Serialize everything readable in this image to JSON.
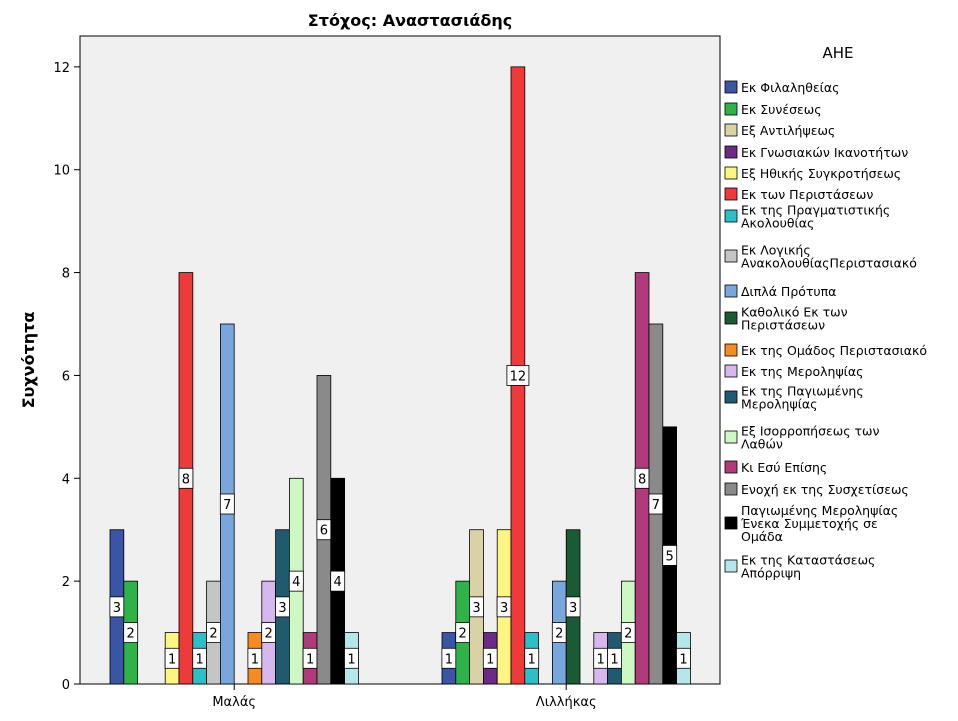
{
  "chart_data": {
    "type": "bar",
    "title": "Στόχος: Αναστασιάδης",
    "xlabel": "",
    "ylabel": "Συχνότητα",
    "ylim": [
      0,
      12.6
    ],
    "yticks": [
      0,
      2,
      4,
      6,
      8,
      10,
      12
    ],
    "categories": [
      "Μαλάς",
      "Λιλλήκας"
    ],
    "legend_title": "ΑΗΕ",
    "legend_position": "right",
    "grid": false,
    "series": [
      {
        "name": "Εκ Φιλαληθείας",
        "lines": [
          "Εκ Φιλαληθείας"
        ],
        "color": "#3a55a4",
        "values": [
          3,
          1
        ]
      },
      {
        "name": "Εκ Συνέσεως",
        "lines": [
          "Εκ Συνέσεως"
        ],
        "color": "#2eb24a",
        "values": [
          2,
          2
        ]
      },
      {
        "name": "Εξ Αντιλήψεως",
        "lines": [
          "Εξ Αντιλήψεως"
        ],
        "color": "#d8d2a6",
        "values": [
          0,
          3
        ]
      },
      {
        "name": "Εκ Γνωσιακών Ικανοτήτων",
        "lines": [
          "Εκ Γνωσιακών Ικανοτήτων"
        ],
        "color": "#6a2a86",
        "values": [
          0,
          1
        ]
      },
      {
        "name": "Εξ Ηθικής Συγκροτήσεως",
        "lines": [
          "Εξ Ηθικής Συγκροτήσεως"
        ],
        "color": "#fbf582",
        "values": [
          1,
          3
        ]
      },
      {
        "name": "Εκ των Περιστάσεων",
        "lines": [
          "Εκ των Περιστάσεων"
        ],
        "color": "#ef3a3a",
        "values": [
          8,
          12
        ]
      },
      {
        "name": "Εκ της Πραγματιστικής Ακολουθίας",
        "lines": [
          "Εκ της Πραγματιστικής",
          "Ακολουθίας"
        ],
        "color": "#2bc0c8",
        "values": [
          1,
          1
        ]
      },
      {
        "name": "Εκ Λογικής ΑνακολουθίαςΠεριστασιακό",
        "lines": [
          "Εκ Λογικής",
          "ΑνακολουθίαςΠεριστασιακό"
        ],
        "color": "#c5c5c5",
        "values": [
          2,
          0
        ]
      },
      {
        "name": "Διπλά Πρότυπα",
        "lines": [
          "Διπλά Πρότυπα"
        ],
        "color": "#79a6dc",
        "values": [
          7,
          2
        ]
      },
      {
        "name": "Καθολικό Εκ των Περιστάσεων",
        "lines": [
          "Καθολικό Εκ των",
          "Περιστάσεων"
        ],
        "color": "#1b5a34",
        "values": [
          0,
          3
        ]
      },
      {
        "name": "Εκ της Ομάδος Περιστασιακό",
        "lines": [
          "Εκ της Ομάδος Περιστασιακό"
        ],
        "color": "#f58b21",
        "values": [
          1,
          0
        ]
      },
      {
        "name": "Εκ της Μεροληψίας",
        "lines": [
          "Εκ της Μεροληψίας"
        ],
        "color": "#d7b8ee",
        "values": [
          2,
          1
        ]
      },
      {
        "name": "Εκ της Παγιωμένης Μεροληψίας",
        "lines": [
          "Εκ της Παγιωμένης",
          "Μεροληψίας"
        ],
        "color": "#1f5a6e",
        "values": [
          3,
          1
        ]
      },
      {
        "name": "Εξ Ισορροπήσεως των Λαθών",
        "lines": [
          "Εξ Ισορροπήσεως των",
          "Λαθών"
        ],
        "color": "#cdf7c3",
        "values": [
          4,
          2
        ]
      },
      {
        "name": "Κι Εσύ Επίσης",
        "lines": [
          "Κι Εσύ Επίσης"
        ],
        "color": "#b13a7b",
        "values": [
          1,
          8
        ]
      },
      {
        "name": "Ενοχή εκ της Συσχετίσεως",
        "lines": [
          "Ενοχή εκ της Συσχετίσεως"
        ],
        "color": "#8a8a8a",
        "values": [
          6,
          7
        ]
      },
      {
        "name": "Παγιωμένης Μεροληψίας Ένεκα Συμμετοχής σε Ομάδα",
        "lines": [
          "Παγιωμένης Μεροληψίας",
          "Ένεκα Συμμετοχής σε",
          "Ομάδα"
        ],
        "color": "#000000",
        "values": [
          4,
          5
        ]
      },
      {
        "name": "Εκ της Καταστάσεως Απόρριψη",
        "lines": [
          "Εκ της Καταστάσεως",
          "Απόρριψη"
        ],
        "color": "#b5e6ea",
        "values": [
          1,
          1
        ]
      }
    ]
  }
}
